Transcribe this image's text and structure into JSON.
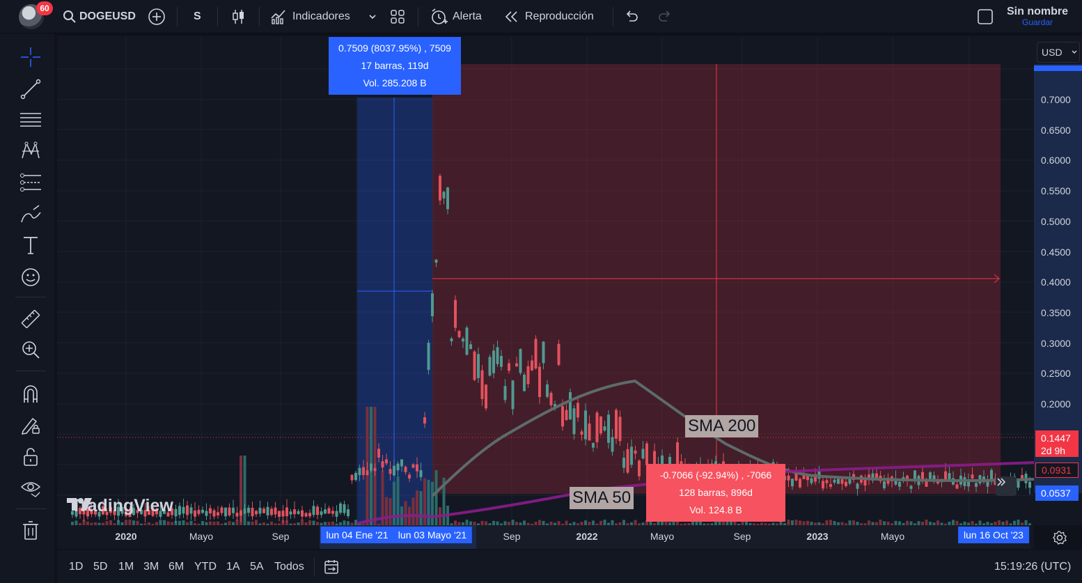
{
  "topbar": {
    "badge": "60",
    "symbol": "DOGEUSD",
    "interval": "S",
    "indicators": "Indicadores",
    "alert": "Alerta",
    "replay": "Reproducción",
    "layout_name": "Sin nombre",
    "save": "Guardar"
  },
  "price_axis": {
    "currency": "USD",
    "ticks": [
      "0.7000",
      "0.6500",
      "0.6000",
      "0.5500",
      "0.5000",
      "0.4500",
      "0.4000",
      "0.3500",
      "0.3000",
      "0.2500",
      "0.2000"
    ],
    "last_price": "0.1447",
    "countdown": "2d 9h",
    "sma200_price": "0.0931",
    "sma50_price": "0.0537",
    "colors": {
      "last": "#f23645",
      "sma200": "#f23645",
      "sma50": "#2962ff"
    }
  },
  "time_axis": {
    "labels": [
      "2020",
      "Mayo",
      "Sep",
      "Sep",
      "2022",
      "Mayo",
      "Sep",
      "2023",
      "Mayo"
    ],
    "range_start": "lun 04 Ene '21",
    "range_end": "lun 03 Mayo '21",
    "cursor": "lun 16 Oct '23"
  },
  "measure_up": {
    "line1": "0.7509 (8037.95%) , 7509",
    "line2": "17 barras, 119d",
    "line3": "Vol. 285.208 B",
    "color": "#2962ff"
  },
  "measure_down": {
    "line1": "-0.7066 (-92.94%) , -7066",
    "line2": "128 barras, 896d",
    "line3": "Vol. 124.8 B",
    "color": "#f7525f"
  },
  "labels": {
    "sma200": "SMA 200",
    "sma50": "SMA 50",
    "watermark": "TradingView"
  },
  "bottombar": {
    "ranges": [
      "1D",
      "5D",
      "1M",
      "3M",
      "6M",
      "YTD",
      "1A",
      "5A",
      "Todos"
    ],
    "clock": "15:19:26 (UTC)"
  }
}
